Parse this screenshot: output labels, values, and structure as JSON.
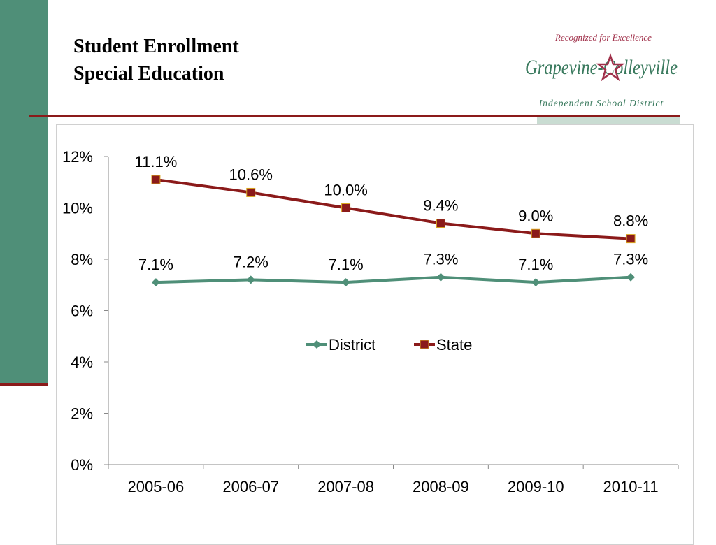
{
  "slide": {
    "title_line1": "Student Enrollment",
    "title_line2": "Special Education"
  },
  "logo": {
    "tagline": "Recognized for Excellence",
    "name": "Grapevine-Colleyville",
    "subtitle": "Independent School District",
    "accent_color": "#a0304a",
    "green_color": "#3a7a5e"
  },
  "chart_data": {
    "type": "line",
    "categories": [
      "2005-06",
      "2006-07",
      "2007-08",
      "2008-09",
      "2009-10",
      "2010-11"
    ],
    "series": [
      {
        "name": "District",
        "values": [
          7.1,
          7.2,
          7.1,
          7.3,
          7.1,
          7.3
        ],
        "labels": [
          "7.1%",
          "7.2%",
          "7.1%",
          "7.3%",
          "7.1%",
          "7.3%"
        ],
        "color": "#4f8f78",
        "marker": "diamond"
      },
      {
        "name": "State",
        "values": [
          11.1,
          10.6,
          10.0,
          9.4,
          9.0,
          8.8
        ],
        "labels": [
          "11.1%",
          "10.6%",
          "10.0%",
          "9.4%",
          "9.0%",
          "8.8%"
        ],
        "color": "#8b1a1a",
        "marker": "square"
      }
    ],
    "yticks": [
      "0%",
      "2%",
      "4%",
      "6%",
      "8%",
      "10%",
      "12%"
    ],
    "ylim": [
      0,
      12
    ],
    "grid": false,
    "legend_position": "center"
  }
}
